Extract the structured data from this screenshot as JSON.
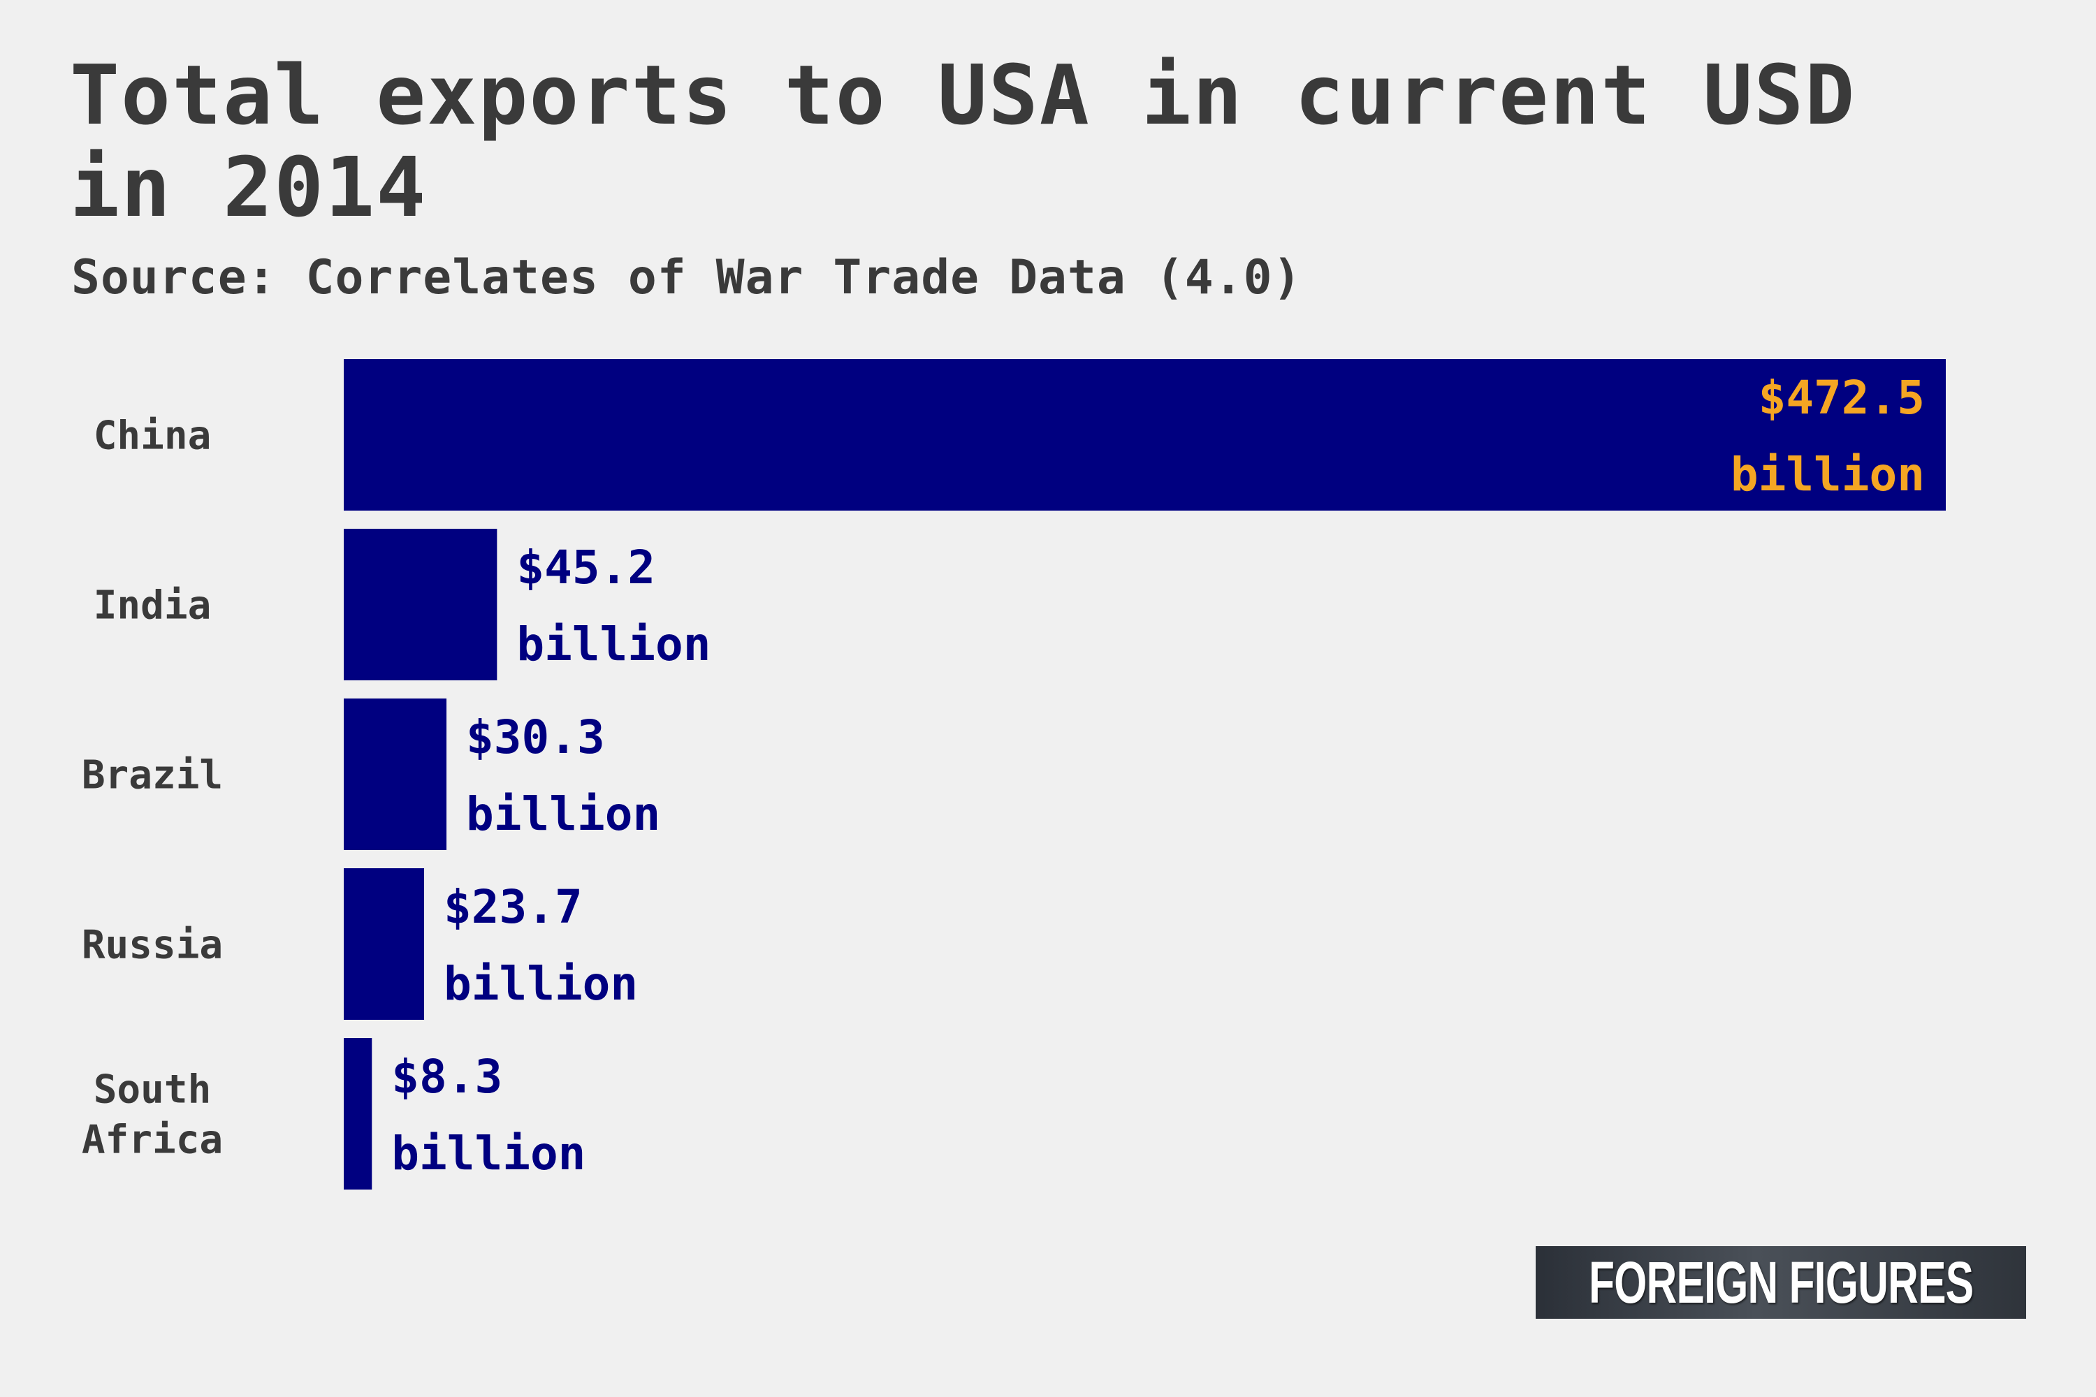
{
  "header": {
    "title": "Total exports to USA in current USD in 2014",
    "subtitle": "Source: Correlates of War Trade Data (4.0)"
  },
  "colors": {
    "bar": "#000080",
    "highlight_label": "#f5a623",
    "label": "#000080",
    "background": "#f0f0f0"
  },
  "chart_data": {
    "type": "bar",
    "orientation": "horizontal",
    "title": "Total exports to USA in current USD in 2014",
    "subtitle": "Source: Correlates of War Trade Data (4.0)",
    "categories": [
      "China",
      "India",
      "Brazil",
      "Russia",
      "South Africa"
    ],
    "values": [
      472.5,
      45.2,
      30.3,
      23.7,
      8.3
    ],
    "value_labels": [
      [
        "$472.5",
        "billion"
      ],
      [
        "$45.2",
        "billion"
      ],
      [
        "$30.3",
        "billion"
      ],
      [
        "$23.7",
        "billion"
      ],
      [
        "$8.3",
        "billion"
      ]
    ],
    "unit": "billion USD",
    "xlim": [
      0,
      472.5
    ],
    "grid": false,
    "legend": "none"
  },
  "branding": {
    "logo_text": "FOREIGN FIGURES"
  }
}
